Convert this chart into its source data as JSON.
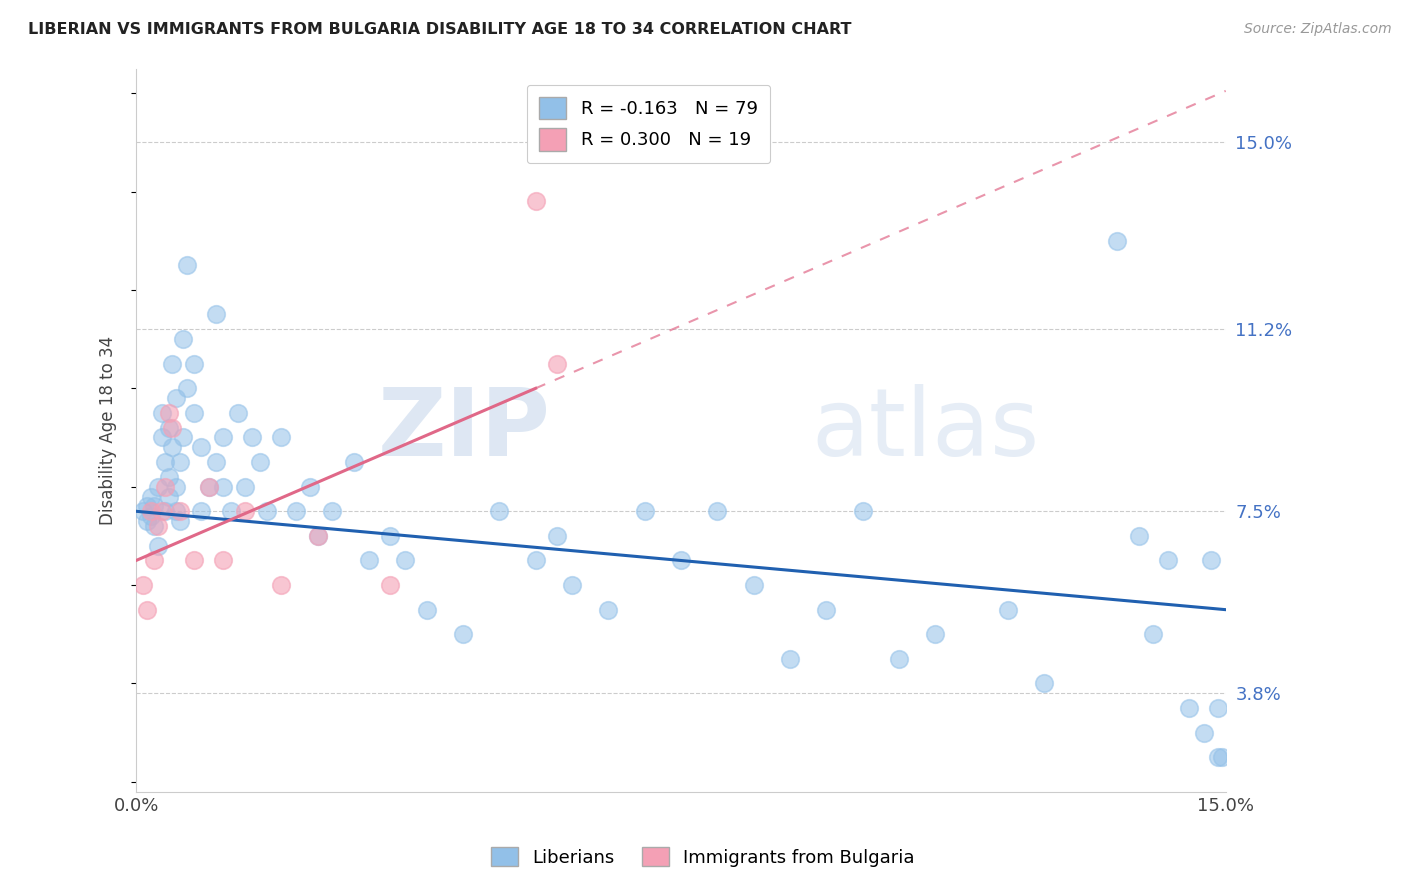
{
  "title": "LIBERIAN VS IMMIGRANTS FROM BULGARIA DISABILITY AGE 18 TO 34 CORRELATION CHART",
  "source": "Source: ZipAtlas.com",
  "ylabel": "Disability Age 18 to 34",
  "y_tick_labels_right": [
    "3.8%",
    "7.5%",
    "11.2%",
    "15.0%"
  ],
  "y_tick_values_right": [
    3.8,
    7.5,
    11.2,
    15.0
  ],
  "xlim": [
    0.0,
    15.0
  ],
  "ylim": [
    1.8,
    16.5
  ],
  "liberian_x": [
    0.1,
    0.15,
    0.15,
    0.2,
    0.2,
    0.25,
    0.25,
    0.3,
    0.3,
    0.35,
    0.35,
    0.4,
    0.4,
    0.45,
    0.45,
    0.45,
    0.5,
    0.5,
    0.55,
    0.55,
    0.55,
    0.6,
    0.6,
    0.65,
    0.65,
    0.7,
    0.7,
    0.8,
    0.8,
    0.9,
    0.9,
    1.0,
    1.1,
    1.1,
    1.2,
    1.2,
    1.3,
    1.4,
    1.5,
    1.6,
    1.7,
    1.8,
    2.0,
    2.2,
    2.4,
    2.5,
    2.7,
    3.0,
    3.2,
    3.5,
    3.7,
    4.0,
    4.5,
    5.0,
    5.5,
    5.8,
    6.0,
    6.5,
    7.0,
    7.5,
    8.0,
    8.5,
    9.0,
    9.5,
    10.0,
    10.5,
    11.0,
    12.0,
    12.5,
    13.5,
    13.8,
    14.0,
    14.2,
    14.5,
    14.7,
    14.8,
    14.9,
    14.9,
    14.95
  ],
  "liberian_y": [
    7.5,
    7.3,
    7.6,
    7.4,
    7.8,
    7.2,
    7.6,
    6.8,
    8.0,
    9.0,
    9.5,
    7.5,
    8.5,
    7.8,
    8.2,
    9.2,
    10.5,
    8.8,
    7.5,
    8.0,
    9.8,
    7.3,
    8.5,
    9.0,
    11.0,
    10.0,
    12.5,
    10.5,
    9.5,
    7.5,
    8.8,
    8.0,
    8.5,
    11.5,
    9.0,
    8.0,
    7.5,
    9.5,
    8.0,
    9.0,
    8.5,
    7.5,
    9.0,
    7.5,
    8.0,
    7.0,
    7.5,
    8.5,
    6.5,
    7.0,
    6.5,
    5.5,
    5.0,
    7.5,
    6.5,
    7.0,
    6.0,
    5.5,
    7.5,
    6.5,
    7.5,
    6.0,
    4.5,
    5.5,
    7.5,
    4.5,
    5.0,
    5.5,
    4.0,
    13.0,
    7.0,
    5.0,
    6.5,
    3.5,
    3.0,
    6.5,
    3.5,
    2.5,
    2.5
  ],
  "bulgaria_x": [
    0.1,
    0.15,
    0.2,
    0.25,
    0.3,
    0.35,
    0.4,
    0.45,
    0.5,
    0.6,
    0.8,
    1.0,
    1.2,
    1.5,
    2.0,
    2.5,
    3.5,
    5.5,
    5.8
  ],
  "bulgaria_y": [
    6.0,
    5.5,
    7.5,
    6.5,
    7.2,
    7.5,
    8.0,
    9.5,
    9.2,
    7.5,
    6.5,
    8.0,
    6.5,
    7.5,
    6.0,
    7.0,
    6.0,
    13.8,
    10.5
  ],
  "blue_color": "#92C0E8",
  "pink_color": "#F4A0B5",
  "blue_line_color": "#2060B0",
  "pink_line_color": "#E06888",
  "blue_line_start_y": 7.5,
  "blue_line_end_y": 5.5,
  "pink_line_x0": 0.0,
  "pink_line_y0": 6.5,
  "pink_line_x1": 5.5,
  "pink_line_y1": 10.0,
  "pink_dash_x0": 5.5,
  "pink_dash_x1": 15.0,
  "watermark_text": "ZIPatlas",
  "background_color": "#FFFFFF",
  "grid_color": "#CCCCCC",
  "legend_blue_label": "R = -0.163   N = 79",
  "legend_pink_label": "R = 0.300   N = 19",
  "bottom_legend_blue": "Liberians",
  "bottom_legend_pink": "Immigrants from Bulgaria"
}
